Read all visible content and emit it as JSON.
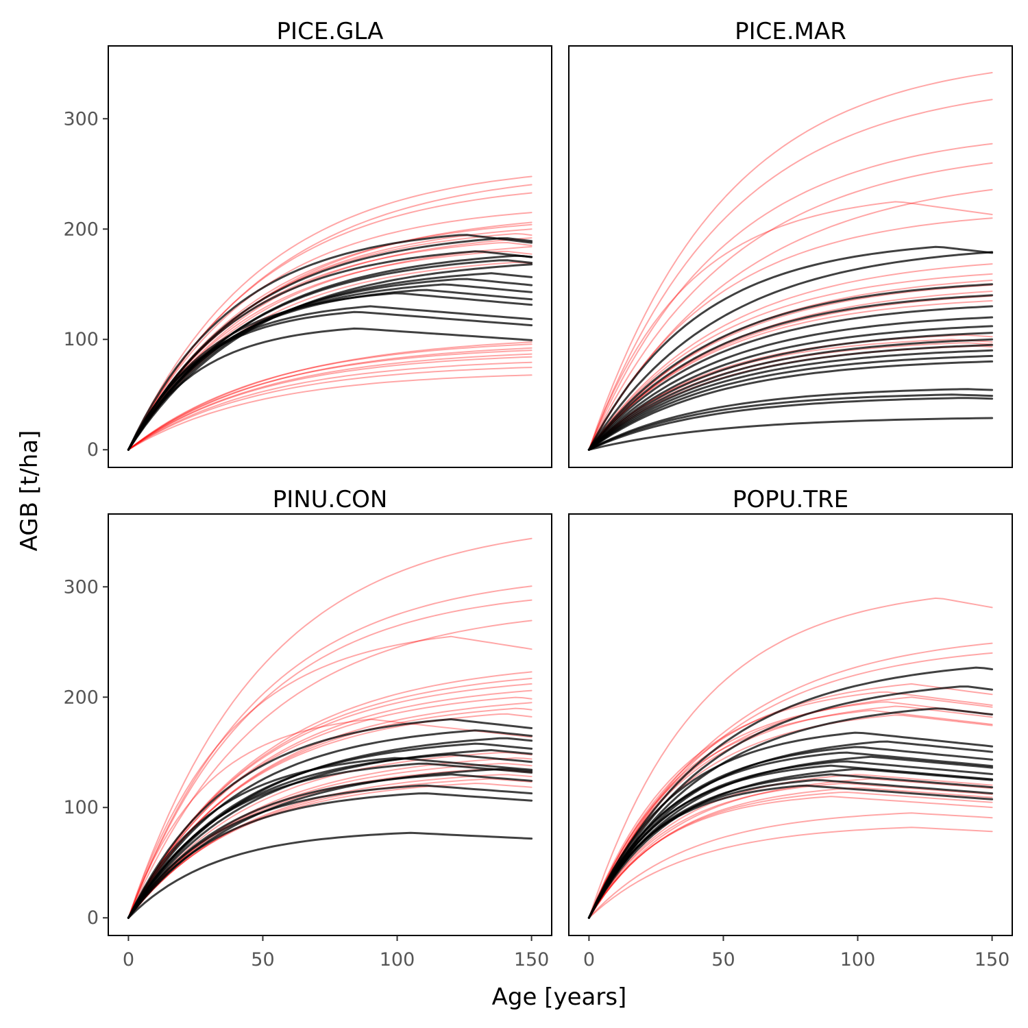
{
  "chart_data": {
    "type": "line",
    "xlabel": "Age [years]",
    "ylabel": "AGB [t/ha]",
    "xlim": [
      -7.5,
      157.5
    ],
    "ylim": [
      -16,
      366
    ],
    "x_ticks": [
      0,
      50,
      100,
      150
    ],
    "y_ticks": [
      0,
      100,
      200,
      300
    ],
    "series_colors": {
      "red": "#ff0000",
      "black": "#000000"
    },
    "panels": [
      {
        "title": "PICE.GLA",
        "black_curves": [
          {
            "asymptote": 195,
            "peak_age": 125
          },
          {
            "asymptote": 192,
            "peak_age": 140
          },
          {
            "asymptote": 180,
            "peak_age": 130
          },
          {
            "asymptote": 176,
            "peak_age": 145
          },
          {
            "asymptote": 172,
            "peak_age": 140
          },
          {
            "asymptote": 168,
            "peak_age": 150
          },
          {
            "asymptote": 160,
            "peak_age": 135
          },
          {
            "asymptote": 155,
            "peak_age": 125
          },
          {
            "asymptote": 150,
            "peak_age": 118
          },
          {
            "asymptote": 145,
            "peak_age": 110
          },
          {
            "asymptote": 142,
            "peak_age": 100
          },
          {
            "asymptote": 130,
            "peak_age": 90
          },
          {
            "asymptote": 125,
            "peak_age": 85
          },
          {
            "asymptote": 110,
            "peak_age": 85
          }
        ],
        "red_curves": [
          {
            "asymptote": 250,
            "peak_age": 160
          },
          {
            "asymptote": 245,
            "peak_age": 170
          },
          {
            "asymptote": 235,
            "peak_age": 160
          },
          {
            "asymptote": 215,
            "peak_age": 150
          },
          {
            "asymptote": 208,
            "peak_age": 160
          },
          {
            "asymptote": 204,
            "peak_age": 150
          },
          {
            "asymptote": 200,
            "peak_age": 150
          },
          {
            "asymptote": 196,
            "peak_age": 145
          },
          {
            "asymptote": 192,
            "peak_age": 150
          },
          {
            "asymptote": 188,
            "peak_age": 140
          },
          {
            "asymptote": 184,
            "peak_age": 150
          },
          {
            "asymptote": 180,
            "peak_age": 140
          },
          {
            "asymptote": 170,
            "peak_age": 145
          },
          {
            "asymptote": 100,
            "peak_age": 175
          },
          {
            "asymptote": 97,
            "peak_age": 165
          },
          {
            "asymptote": 94,
            "peak_age": 170
          },
          {
            "asymptote": 91,
            "peak_age": 160
          },
          {
            "asymptote": 88,
            "peak_age": 165
          },
          {
            "asymptote": 85,
            "peak_age": 160
          },
          {
            "asymptote": 80,
            "peak_age": 160
          },
          {
            "asymptote": 75,
            "peak_age": 155
          },
          {
            "asymptote": 68,
            "peak_age": 155
          }
        ]
      },
      {
        "title": "PICE.MAR",
        "black_curves": [
          {
            "asymptote": 184,
            "peak_age": 130
          },
          {
            "asymptote": 180,
            "peak_age": 155
          },
          {
            "asymptote": 150,
            "peak_age": 150
          },
          {
            "asymptote": 140,
            "peak_age": 150
          },
          {
            "asymptote": 130,
            "peak_age": 150
          },
          {
            "asymptote": 120,
            "peak_age": 150
          },
          {
            "asymptote": 112,
            "peak_age": 150
          },
          {
            "asymptote": 106,
            "peak_age": 150
          },
          {
            "asymptote": 100,
            "peak_age": 150
          },
          {
            "asymptote": 95,
            "peak_age": 150
          },
          {
            "asymptote": 90,
            "peak_age": 150
          },
          {
            "asymptote": 85,
            "peak_age": 150
          },
          {
            "asymptote": 80,
            "peak_age": 150
          },
          {
            "asymptote": 55,
            "peak_age": 140
          },
          {
            "asymptote": 50,
            "peak_age": 135
          },
          {
            "asymptote": 47,
            "peak_age": 140
          },
          {
            "asymptote": 29,
            "peak_age": 160
          }
        ],
        "red_curves": [
          {
            "asymptote": 345,
            "peak_age": 160
          },
          {
            "asymptote": 322,
            "peak_age": 165
          },
          {
            "asymptote": 280,
            "peak_age": 160
          },
          {
            "asymptote": 265,
            "peak_age": 170
          },
          {
            "asymptote": 243,
            "peak_age": 180
          },
          {
            "asymptote": 225,
            "peak_age": 115
          },
          {
            "asymptote": 210,
            "peak_age": 150
          },
          {
            "asymptote": 170,
            "peak_age": 160
          },
          {
            "asymptote": 160,
            "peak_age": 155
          },
          {
            "asymptote": 155,
            "peak_age": 160
          },
          {
            "asymptote": 150,
            "peak_age": 155
          },
          {
            "asymptote": 145,
            "peak_age": 160
          },
          {
            "asymptote": 140,
            "peak_age": 155
          },
          {
            "asymptote": 135,
            "peak_age": 150
          },
          {
            "asymptote": 104,
            "peak_age": 140
          },
          {
            "asymptote": 100,
            "peak_age": 135
          },
          {
            "asymptote": 97,
            "peak_age": 140
          },
          {
            "asymptote": 94,
            "peak_age": 145
          }
        ]
      },
      {
        "title": "PINU.CON",
        "black_curves": [
          {
            "asymptote": 180,
            "peak_age": 120
          },
          {
            "asymptote": 170,
            "peak_age": 130
          },
          {
            "asymptote": 163,
            "peak_age": 140
          },
          {
            "asymptote": 158,
            "peak_age": 130
          },
          {
            "asymptote": 152,
            "peak_age": 135
          },
          {
            "asymptote": 148,
            "peak_age": 120
          },
          {
            "asymptote": 145,
            "peak_age": 100
          },
          {
            "asymptote": 140,
            "peak_age": 110
          },
          {
            "asymptote": 135,
            "peak_age": 140
          },
          {
            "asymptote": 130,
            "peak_age": 120
          },
          {
            "asymptote": 120,
            "peak_age": 110
          },
          {
            "asymptote": 113,
            "peak_age": 110
          },
          {
            "asymptote": 77,
            "peak_age": 105
          }
        ],
        "red_curves": [
          {
            "asymptote": 347,
            "peak_age": 160
          },
          {
            "asymptote": 302,
            "peak_age": 155
          },
          {
            "asymptote": 288,
            "peak_age": 150
          },
          {
            "asymptote": 272,
            "peak_age": 160
          },
          {
            "asymptote": 255,
            "peak_age": 120
          },
          {
            "asymptote": 225,
            "peak_age": 160
          },
          {
            "asymptote": 218,
            "peak_age": 155
          },
          {
            "asymptote": 212,
            "peak_age": 150
          },
          {
            "asymptote": 206,
            "peak_age": 150
          },
          {
            "asymptote": 200,
            "peak_age": 145
          },
          {
            "asymptote": 195,
            "peak_age": 150
          },
          {
            "asymptote": 190,
            "peak_age": 145
          },
          {
            "asymptote": 185,
            "peak_age": 140
          },
          {
            "asymptote": 180,
            "peak_age": 90
          },
          {
            "asymptote": 150,
            "peak_age": 140
          },
          {
            "asymptote": 145,
            "peak_age": 145
          },
          {
            "asymptote": 140,
            "peak_age": 140
          },
          {
            "asymptote": 135,
            "peak_age": 135
          },
          {
            "asymptote": 130,
            "peak_age": 140
          },
          {
            "asymptote": 126,
            "peak_age": 135
          },
          {
            "asymptote": 122,
            "peak_age": 130
          }
        ]
      },
      {
        "title": "POPU.TRE",
        "black_curves": [
          {
            "asymptote": 227,
            "peak_age": 145
          },
          {
            "asymptote": 210,
            "peak_age": 140
          },
          {
            "asymptote": 190,
            "peak_age": 130
          },
          {
            "asymptote": 168,
            "peak_age": 100
          },
          {
            "asymptote": 160,
            "peak_age": 110
          },
          {
            "asymptote": 155,
            "peak_age": 100
          },
          {
            "asymptote": 150,
            "peak_age": 95
          },
          {
            "asymptote": 146,
            "peak_age": 105
          },
          {
            "asymptote": 142,
            "peak_age": 95
          },
          {
            "asymptote": 138,
            "peak_age": 90
          },
          {
            "asymptote": 135,
            "peak_age": 100
          },
          {
            "asymptote": 130,
            "peak_age": 90
          },
          {
            "asymptote": 125,
            "peak_age": 85
          },
          {
            "asymptote": 120,
            "peak_age": 80
          }
        ],
        "red_curves": [
          {
            "asymptote": 290,
            "peak_age": 130
          },
          {
            "asymptote": 250,
            "peak_age": 155
          },
          {
            "asymptote": 240,
            "peak_age": 150
          },
          {
            "asymptote": 212,
            "peak_age": 120
          },
          {
            "asymptote": 205,
            "peak_age": 110
          },
          {
            "asymptote": 200,
            "peak_age": 120
          },
          {
            "asymptote": 196,
            "peak_age": 110
          },
          {
            "asymptote": 192,
            "peak_age": 115
          },
          {
            "asymptote": 188,
            "peak_age": 105
          },
          {
            "asymptote": 184,
            "peak_age": 115
          },
          {
            "asymptote": 130,
            "peak_age": 100
          },
          {
            "asymptote": 126,
            "peak_age": 105
          },
          {
            "asymptote": 122,
            "peak_age": 95
          },
          {
            "asymptote": 118,
            "peak_age": 100
          },
          {
            "asymptote": 114,
            "peak_age": 95
          },
          {
            "asymptote": 110,
            "peak_age": 90
          },
          {
            "asymptote": 95,
            "peak_age": 120
          },
          {
            "asymptote": 82,
            "peak_age": 120
          }
        ]
      }
    ]
  }
}
